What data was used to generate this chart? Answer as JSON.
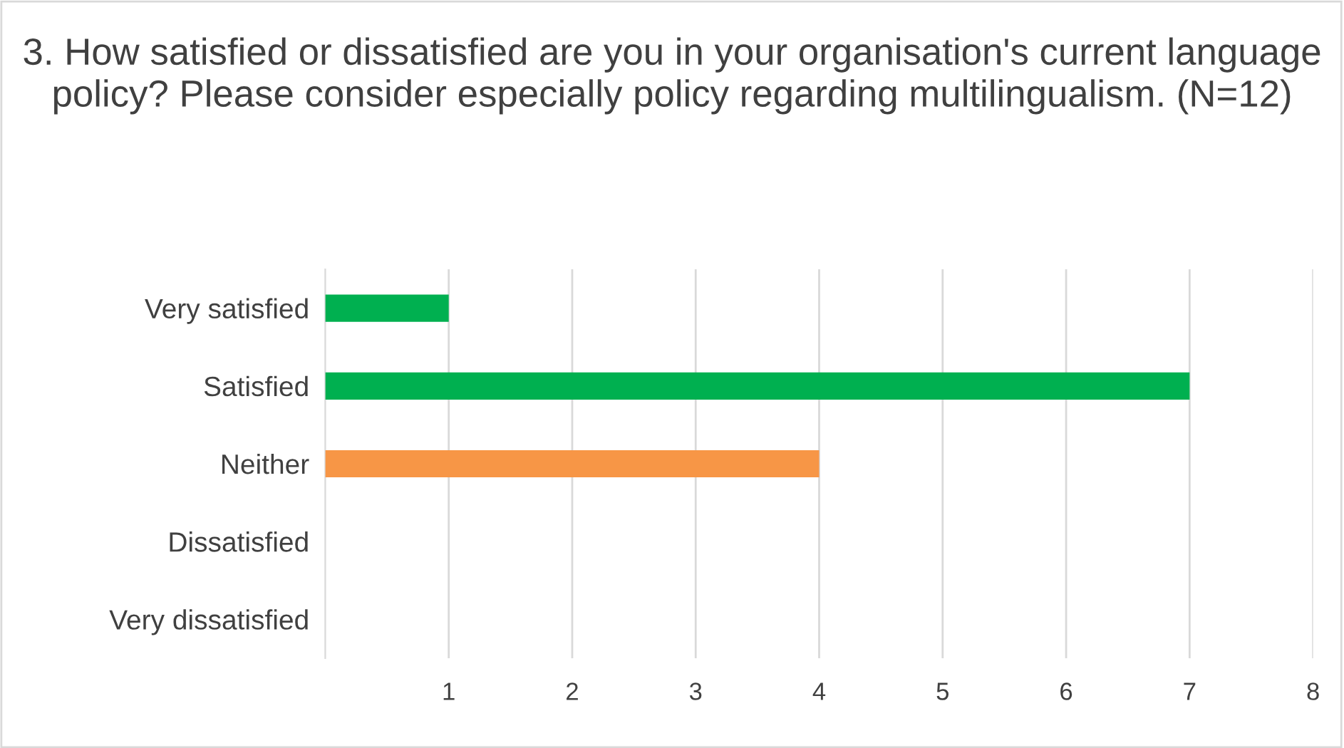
{
  "chart_data": {
    "type": "bar",
    "orientation": "horizontal",
    "title": "3. How satisfied or dissatisfied are you in your organisation's current language policy? Please consider especially policy regarding multilingualism. (N=12)",
    "categories": [
      "Very satisfied",
      "Satisfied",
      "Neither",
      "Dissatisfied",
      "Very dissatisfied"
    ],
    "values": [
      1,
      7,
      4,
      0,
      0
    ],
    "colors": [
      "#00b050",
      "#00b050",
      "#f79646",
      "#c00000",
      "#c00000"
    ],
    "xlim": [
      0,
      8
    ],
    "xticks": [
      1,
      2,
      3,
      4,
      5,
      6,
      7,
      8
    ],
    "grid": "x"
  }
}
